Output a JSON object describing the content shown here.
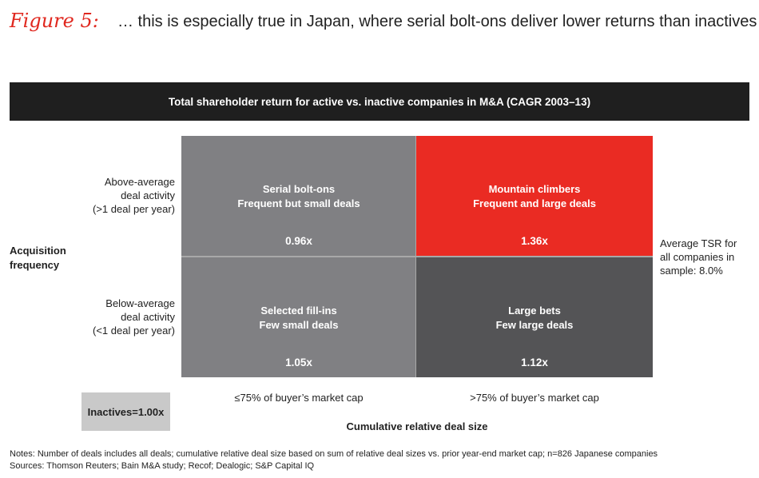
{
  "figure": {
    "label": "Figure 5:",
    "title": "… this is especially true in Japan, where serial bolt-ons deliver lower returns than inactives"
  },
  "header": "Total shareholder return for active vs. inactive companies in M&A (CAGR 2003–13)",
  "y_axis": {
    "title_line1": "Acquisition",
    "title_line2": "frequency",
    "top_label": [
      "Above-average",
      "deal activity",
      "(>1 deal per year)"
    ],
    "bottom_label": [
      "Below-average",
      "deal activity",
      "(<1 deal per year)"
    ]
  },
  "x_axis": {
    "title": "Cumulative relative deal size",
    "left_label": "≤75% of buyer’s market cap",
    "right_label": ">75% of buyer’s market cap"
  },
  "quadrants": {
    "top_left": {
      "name": "Serial bolt-ons",
      "desc": "Frequent but small deals",
      "value": "0.96x",
      "color": "#808083"
    },
    "top_right": {
      "name": "Mountain climbers",
      "desc": "Frequent and large deals",
      "value": "1.36x",
      "color": "#ea2b23"
    },
    "bottom_left": {
      "name": "Selected fill-ins",
      "desc": "Few small deals",
      "value": "1.05x",
      "color": "#808083"
    },
    "bottom_right": {
      "name": "Large bets",
      "desc": "Few large deals",
      "value": "1.12x",
      "color": "#545456"
    }
  },
  "side_note": [
    "Average TSR for",
    "all companies in",
    "sample: 8.0%"
  ],
  "inactives": "Inactives=1.00x",
  "notes": [
    "Notes: Number of deals includes all deals; cumulative relative deal size based on sum of relative deal sizes vs. prior year-end market cap; n=826 Japanese companies",
    "Sources: Thomson Reuters; Bain M&A study; Recof; Dealogic; S&P Capital IQ"
  ]
}
